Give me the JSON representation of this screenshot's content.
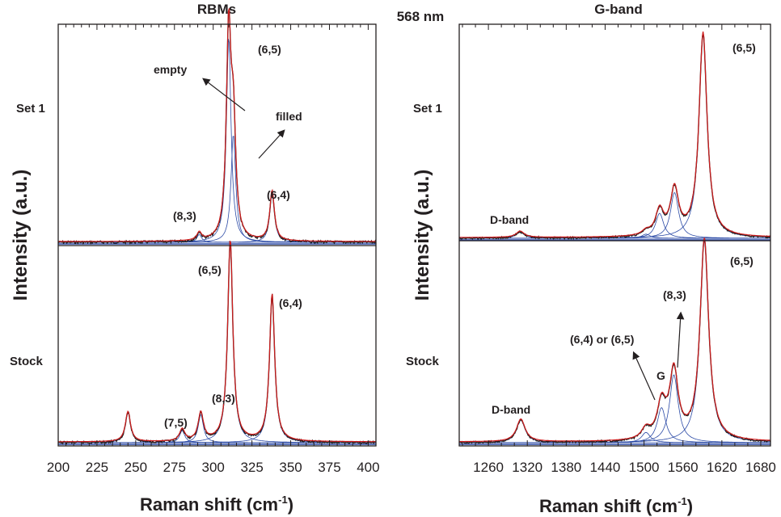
{
  "figure": {
    "center_label": "568 nm",
    "center_label_color": "#c9b000",
    "colors": {
      "measured": "#231f20",
      "fit_total": "#d01c1c",
      "components": "#2b4aa6",
      "axis": "#231f20"
    }
  },
  "chart_data": [
    {
      "type": "line",
      "title": "RBMs",
      "xlabel": "Raman shift (cm",
      "xlabel_sup": "-1",
      "xlabel_close": ")",
      "ylabel": "Intensity (a.u.)",
      "xlim": [
        200,
        405
      ],
      "xticks": [
        "200",
        "225",
        "250",
        "275",
        "300",
        "325",
        "350",
        "375",
        "400"
      ],
      "panels": [
        {
          "name": "Set 1",
          "peaks": [
            {
              "label": "(8,3)",
              "x": 291,
              "height": 0.03
            },
            {
              "label": "(6,5) empty",
              "x": 310,
              "height": 0.78
            },
            {
              "label": "(6,5) filled",
              "x": 313,
              "height": 0.41
            },
            {
              "label": "(6,4)",
              "x": 338,
              "height": 0.19
            }
          ],
          "annotations": [
            "empty",
            "filled",
            "(6,5)",
            "(8,3)",
            "(6,4)"
          ]
        },
        {
          "name": "Stock",
          "peaks": [
            {
              "label": "",
              "x": 245,
              "height": 0.15
            },
            {
              "label": "(7,5)",
              "x": 280,
              "height": 0.06
            },
            {
              "label": "(8,3)",
              "x": 292,
              "height": 0.14
            },
            {
              "label": "(6,5)",
              "x": 311,
              "height": 1.0
            },
            {
              "label": "(6,4)",
              "x": 338,
              "height": 0.73
            }
          ],
          "annotations": [
            "(7,5)",
            "(8,3)",
            "(6,5)",
            "(6,4)"
          ]
        }
      ]
    },
    {
      "type": "line",
      "title": "G-band",
      "xlabel": "Raman shift (cm",
      "xlabel_sup": "-1",
      "xlabel_close": ")",
      "ylabel": "Intensity (a.u.)",
      "xlim": [
        1215,
        1695
      ],
      "xticks": [
        "1260",
        "1320",
        "1380",
        "1440",
        "1500",
        "1560",
        "1620",
        "1680"
      ],
      "panels": [
        {
          "name": "Set 1",
          "peaks": [
            {
              "label": "D-band",
              "x": 1309,
              "height": 0.03
            },
            {
              "label": "",
              "x": 1503,
              "height": 0.02
            },
            {
              "label": "",
              "x": 1524,
              "height": 0.12
            },
            {
              "label": "",
              "x": 1547,
              "height": 0.22
            },
            {
              "label": "(6,5)",
              "x": 1591,
              "height": 0.98
            }
          ],
          "annotations": [
            "D-band",
            "(6,5)"
          ]
        },
        {
          "name": "Stock",
          "peaks": [
            {
              "label": "D-band",
              "x": 1310,
              "height": 0.11
            },
            {
              "label": "",
              "x": 1503,
              "height": 0.05
            },
            {
              "label": "(6,4) or (6,5) G-",
              "x": 1527,
              "height": 0.17
            },
            {
              "label": "(8,3)",
              "x": 1546,
              "height": 0.33
            },
            {
              "label": "(6,5)",
              "x": 1593,
              "height": 0.98
            }
          ],
          "annotations": [
            "D-band",
            "(6,4) or (6,5)",
            "G",
            "(8,3)",
            "(6,5)"
          ]
        }
      ]
    }
  ]
}
